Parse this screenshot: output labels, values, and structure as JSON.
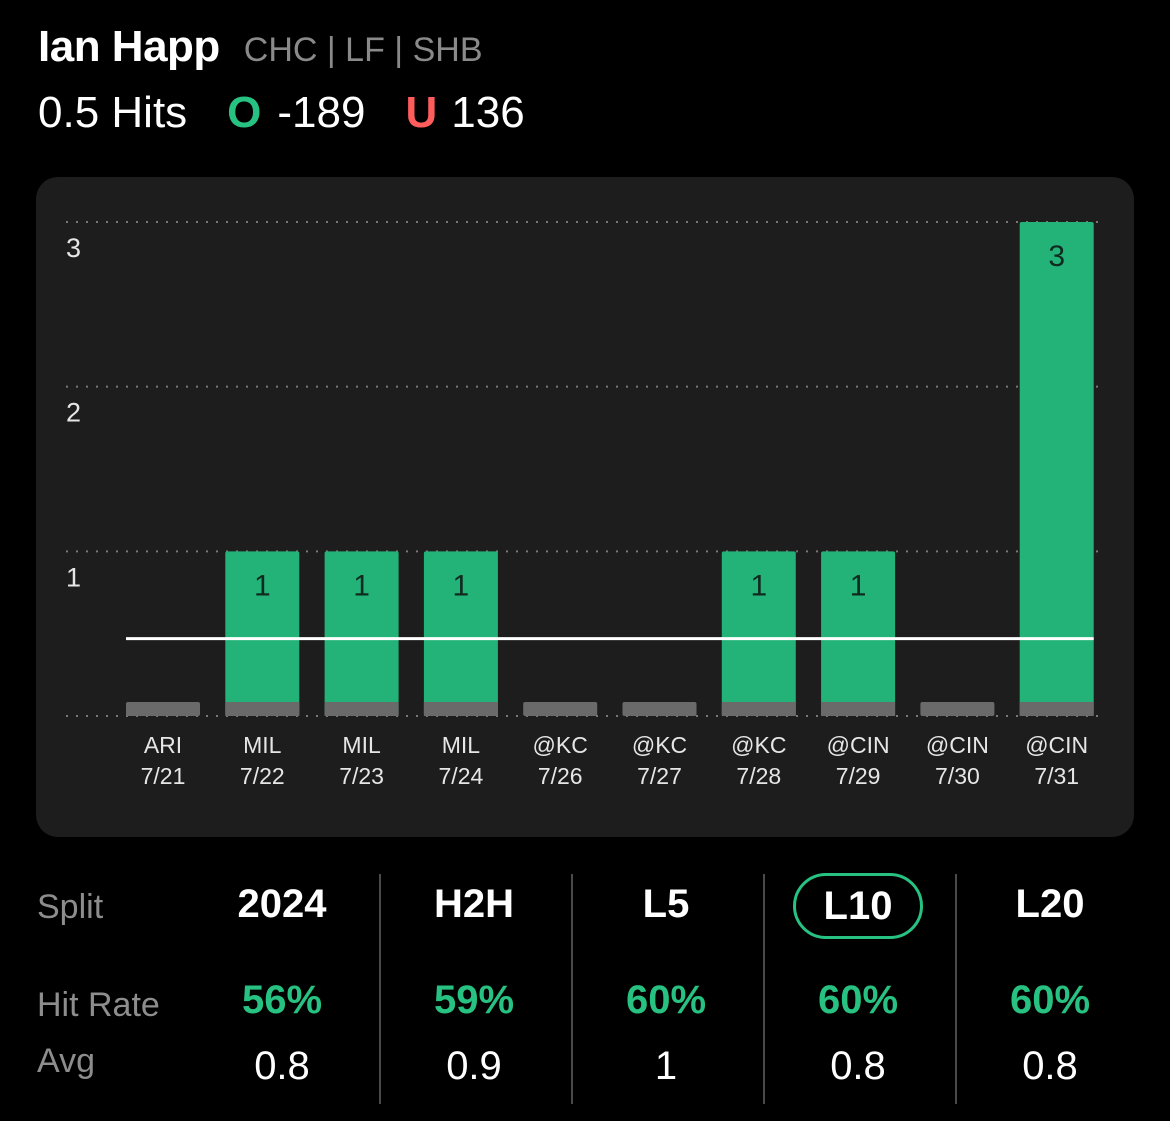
{
  "player": {
    "name": "Ian Happ",
    "meta": "CHC | LF | SHB"
  },
  "line": {
    "label": "0.5 Hits",
    "over_mark": "O",
    "over_odds": "-189",
    "under_mark": "U",
    "under_odds": "136"
  },
  "colors": {
    "hit": "#23b378",
    "miss": "#6a6a6a",
    "accent": "#27c281",
    "under": "#ff5c5c",
    "panel": "#1d1d1d"
  },
  "chart_data": {
    "type": "bar",
    "categories": [
      "ARI 7/21",
      "MIL 7/22",
      "MIL 7/23",
      "MIL 7/24",
      "@KC 7/26",
      "@KC 7/27",
      "@KC 7/28",
      "@CIN 7/29",
      "@CIN 7/30",
      "@CIN 7/31"
    ],
    "opponents": [
      "ARI",
      "MIL",
      "MIL",
      "MIL",
      "@KC",
      "@KC",
      "@KC",
      "@CIN",
      "@CIN",
      "@CIN"
    ],
    "dates": [
      "7/21",
      "7/22",
      "7/23",
      "7/24",
      "7/26",
      "7/27",
      "7/28",
      "7/29",
      "7/30",
      "7/31"
    ],
    "values": [
      0,
      1,
      1,
      1,
      0,
      0,
      1,
      1,
      0,
      3
    ],
    "ylim": [
      0,
      3
    ],
    "yticks": [
      1,
      2,
      3
    ],
    "threshold": 0.5,
    "grid": "dotted",
    "xlabel": "",
    "ylabel": ""
  },
  "splits": {
    "row_labels": {
      "split": "Split",
      "hit_rate": "Hit Rate",
      "avg": "Avg"
    },
    "columns": [
      {
        "label": "2024",
        "hit_rate": "56%",
        "avg": "0.8",
        "selected": false
      },
      {
        "label": "H2H",
        "hit_rate": "59%",
        "avg": "0.9",
        "selected": false
      },
      {
        "label": "L5",
        "hit_rate": "60%",
        "avg": "1",
        "selected": false
      },
      {
        "label": "L10",
        "hit_rate": "60%",
        "avg": "0.8",
        "selected": true
      },
      {
        "label": "L20",
        "hit_rate": "60%",
        "avg": "0.8",
        "selected": false
      }
    ]
  }
}
